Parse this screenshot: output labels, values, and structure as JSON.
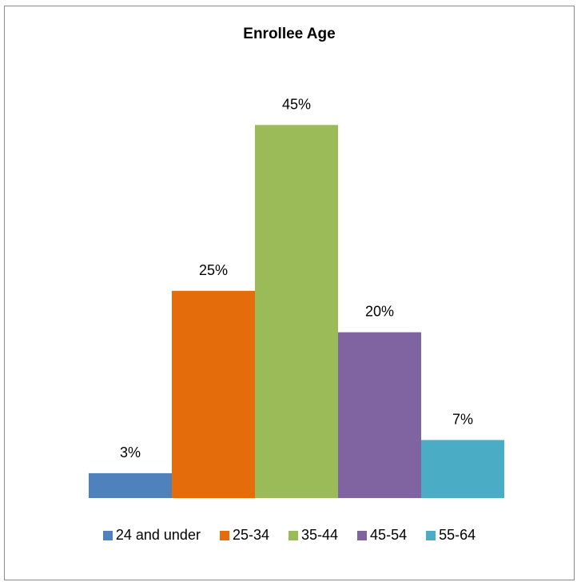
{
  "chart_data": {
    "type": "bar",
    "title": "Enrollee Age",
    "xlabel": "",
    "ylabel": "",
    "ylim": [
      0,
      50
    ],
    "grid": false,
    "legend_position": "bottom",
    "data_label_suffix": "%",
    "series": [
      {
        "name": "24 and under",
        "value": 3,
        "label": "3%",
        "color": "#4f81bd"
      },
      {
        "name": "25-34",
        "value": 25,
        "label": "25%",
        "color": "#e46c0a"
      },
      {
        "name": "35-44",
        "value": 45,
        "label": "45%",
        "color": "#9bbb59"
      },
      {
        "name": "45-54",
        "value": 20,
        "label": "20%",
        "color": "#8064a2"
      },
      {
        "name": "55-64",
        "value": 7,
        "label": "7%",
        "color": "#4bacc6"
      }
    ]
  }
}
